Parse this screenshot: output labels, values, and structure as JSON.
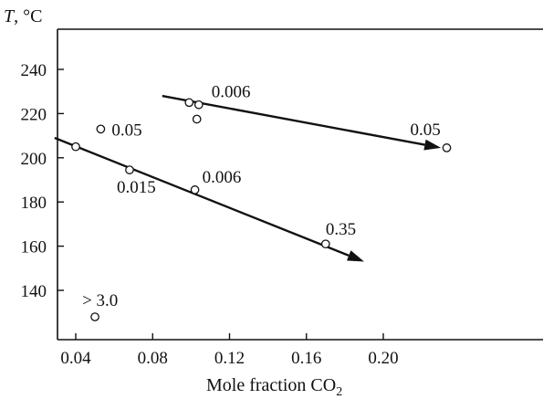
{
  "chart_data": {
    "type": "scatter",
    "title": "",
    "xlabel": "Mole fraction CO",
    "xlabel_subscript": "2",
    "ylabel": "T, °C",
    "xlim": [
      0.02,
      0.24
    ],
    "ylim": [
      120,
      250
    ],
    "x_ticks": [
      0.04,
      0.08,
      0.12,
      0.16,
      0.2
    ],
    "x_tick_labels": [
      "0.04",
      "0.08",
      "0.12",
      "0.16",
      "0.20"
    ],
    "y_ticks": [
      140,
      160,
      180,
      200,
      220,
      240
    ],
    "y_tick_labels": [
      "140",
      "160",
      "180",
      "200",
      "220",
      "240"
    ],
    "grid": false,
    "legend": "none",
    "points": [
      {
        "x": 0.04,
        "y": 205,
        "label": ""
      },
      {
        "x": 0.068,
        "y": 194.5,
        "label": "0.015"
      },
      {
        "x": 0.102,
        "y": 185.5,
        "label": "0.006"
      },
      {
        "x": 0.17,
        "y": 161,
        "label": "0.35"
      },
      {
        "x": 0.053,
        "y": 213,
        "label": "0.05"
      },
      {
        "x": 0.099,
        "y": 225,
        "label": ""
      },
      {
        "x": 0.104,
        "y": 224,
        "label": "0.006"
      },
      {
        "x": 0.103,
        "y": 217.5,
        "label": ""
      },
      {
        "x": 0.233,
        "y": 204.5,
        "label": "0.05"
      },
      {
        "x": 0.05,
        "y": 128,
        "label": "> 3.0"
      }
    ],
    "trend_lines": [
      {
        "x": [
          0.029,
          0.19
        ],
        "y": [
          209,
          153
        ]
      },
      {
        "x": [
          0.085,
          0.23
        ],
        "y": [
          228,
          204.5
        ]
      }
    ]
  }
}
